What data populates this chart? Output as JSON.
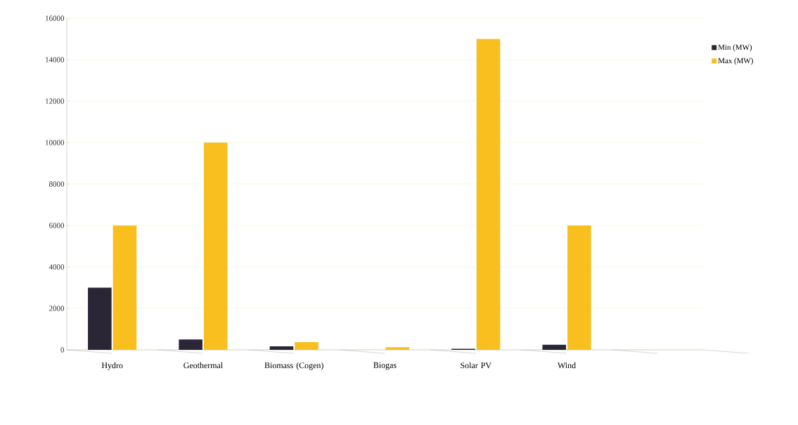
{
  "chart_data": {
    "type": "bar",
    "categories": [
      "Hydro",
      "Geothermal",
      "Biomass (Cogen)",
      "Biogas",
      "Solar PV",
      "Wind",
      null
    ],
    "series": [
      {
        "name": "Min (MW)",
        "color": "#2b2636",
        "values": [
          3000,
          500,
          170,
          0,
          50,
          250,
          null
        ]
      },
      {
        "name": "Max (MW)",
        "color": "#f8bf1f",
        "values": [
          6000,
          10000,
          370,
          130,
          15000,
          6000,
          null
        ]
      }
    ],
    "ylim": [
      0,
      16000
    ],
    "yticks": [
      0,
      2000,
      4000,
      6000,
      8000,
      10000,
      12000,
      14000,
      16000
    ],
    "grid": "y",
    "legend": "right"
  }
}
